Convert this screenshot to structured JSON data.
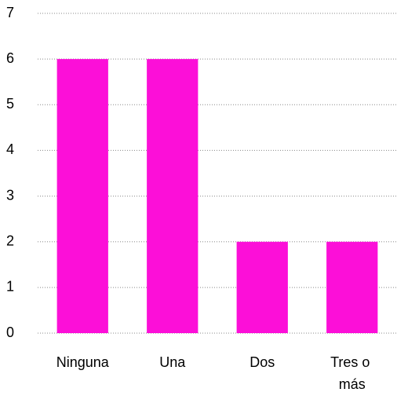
{
  "chart_data": {
    "type": "bar",
    "categories": [
      "Ninguna",
      "Una",
      "Dos",
      "Tres o más"
    ],
    "values": [
      6,
      6,
      2,
      2
    ],
    "color": "#fc0fd8",
    "ylim": [
      0,
      7
    ],
    "yticks": [
      0,
      1,
      2,
      3,
      4,
      5,
      6,
      7
    ],
    "grid": true
  }
}
